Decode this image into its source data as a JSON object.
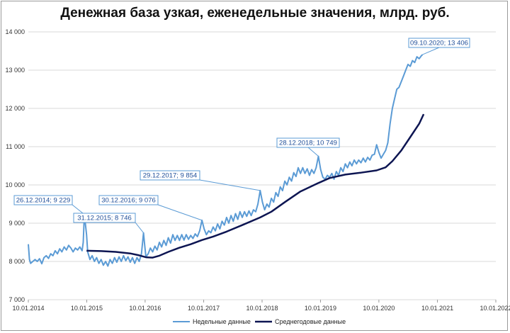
{
  "chart_data": {
    "type": "line",
    "title": "Денежная база узкая, еженедельные значения, млрд. руб.",
    "ylim": [
      7000,
      14000
    ],
    "yticks": [
      7000,
      8000,
      9000,
      10000,
      11000,
      12000,
      13000,
      14000
    ],
    "ytick_labels": [
      "7 000",
      "8 000",
      "9 000",
      "10 000",
      "11 000",
      "12 000",
      "13 000",
      "14 000"
    ],
    "xlim": [
      "2014-01-10",
      "2022-01-10"
    ],
    "xticks": [
      "2014-01-10",
      "2015-01-10",
      "2016-01-10",
      "2017-01-10",
      "2018-01-10",
      "2019-01-10",
      "2020-01-10",
      "2021-01-10",
      "2022-01-10"
    ],
    "xtick_labels": [
      "10.01.2014",
      "10.01.2015",
      "10.01.2016",
      "10.01.2017",
      "10.01.2018",
      "10.01.2019",
      "10.01.2020",
      "10.01.2021",
      "10.01.2022"
    ],
    "grid": true,
    "legend_position": "bottom",
    "series": [
      {
        "name": "Недельные данные",
        "color": "#5b9bd5",
        "points": [
          [
            "2014-01-10",
            8450
          ],
          [
            "2014-01-17",
            8050
          ],
          [
            "2014-01-24",
            7950
          ],
          [
            "2014-02-07",
            8000
          ],
          [
            "2014-02-21",
            8050
          ],
          [
            "2014-03-07",
            8000
          ],
          [
            "2014-03-21",
            8070
          ],
          [
            "2014-04-04",
            7940
          ],
          [
            "2014-04-18",
            8100
          ],
          [
            "2014-05-02",
            8150
          ],
          [
            "2014-05-16",
            8080
          ],
          [
            "2014-05-30",
            8200
          ],
          [
            "2014-06-13",
            8150
          ],
          [
            "2014-06-27",
            8280
          ],
          [
            "2014-07-11",
            8200
          ],
          [
            "2014-07-25",
            8330
          ],
          [
            "2014-08-08",
            8250
          ],
          [
            "2014-08-22",
            8380
          ],
          [
            "2014-09-05",
            8300
          ],
          [
            "2014-09-19",
            8420
          ],
          [
            "2014-10-03",
            8350
          ],
          [
            "2014-10-17",
            8250
          ],
          [
            "2014-10-31",
            8350
          ],
          [
            "2014-11-14",
            8300
          ],
          [
            "2014-11-28",
            8380
          ],
          [
            "2014-12-12",
            8280
          ],
          [
            "2014-12-19",
            8500
          ],
          [
            "2014-12-26",
            9229
          ],
          [
            "2015-01-09",
            8700
          ],
          [
            "2015-01-16",
            8250
          ],
          [
            "2015-01-30",
            8050
          ],
          [
            "2015-02-13",
            8150
          ],
          [
            "2015-02-27",
            8000
          ],
          [
            "2015-03-13",
            8100
          ],
          [
            "2015-03-27",
            7950
          ],
          [
            "2015-04-10",
            8050
          ],
          [
            "2015-04-24",
            7900
          ],
          [
            "2015-05-08",
            8000
          ],
          [
            "2015-05-22",
            7880
          ],
          [
            "2015-06-05",
            8050
          ],
          [
            "2015-06-19",
            7950
          ],
          [
            "2015-07-03",
            8100
          ],
          [
            "2015-07-17",
            7980
          ],
          [
            "2015-07-31",
            8120
          ],
          [
            "2015-08-14",
            8000
          ],
          [
            "2015-08-28",
            8150
          ],
          [
            "2015-09-11",
            8020
          ],
          [
            "2015-09-25",
            8120
          ],
          [
            "2015-10-09",
            7980
          ],
          [
            "2015-10-23",
            8100
          ],
          [
            "2015-11-06",
            7950
          ],
          [
            "2015-11-20",
            8100
          ],
          [
            "2015-12-04",
            8000
          ],
          [
            "2015-12-18",
            8200
          ],
          [
            "2015-12-31",
            8746
          ],
          [
            "2016-01-08",
            8400
          ],
          [
            "2016-01-15",
            8120
          ],
          [
            "2016-01-29",
            8200
          ],
          [
            "2016-02-12",
            8350
          ],
          [
            "2016-02-26",
            8250
          ],
          [
            "2016-03-11",
            8400
          ],
          [
            "2016-03-25",
            8300
          ],
          [
            "2016-04-08",
            8500
          ],
          [
            "2016-04-22",
            8380
          ],
          [
            "2016-05-06",
            8550
          ],
          [
            "2016-05-20",
            8420
          ],
          [
            "2016-06-03",
            8620
          ],
          [
            "2016-06-17",
            8480
          ],
          [
            "2016-07-01",
            8700
          ],
          [
            "2016-07-15",
            8550
          ],
          [
            "2016-07-29",
            8680
          ],
          [
            "2016-08-12",
            8550
          ],
          [
            "2016-08-26",
            8700
          ],
          [
            "2016-09-09",
            8560
          ],
          [
            "2016-09-23",
            8700
          ],
          [
            "2016-10-07",
            8580
          ],
          [
            "2016-10-21",
            8680
          ],
          [
            "2016-11-04",
            8600
          ],
          [
            "2016-11-18",
            8720
          ],
          [
            "2016-12-02",
            8650
          ],
          [
            "2016-12-16",
            8800
          ],
          [
            "2016-12-30",
            9076
          ],
          [
            "2017-01-13",
            8850
          ],
          [
            "2017-01-27",
            8700
          ],
          [
            "2017-02-10",
            8800
          ],
          [
            "2017-02-24",
            8750
          ],
          [
            "2017-03-10",
            8900
          ],
          [
            "2017-03-24",
            8800
          ],
          [
            "2017-04-07",
            8980
          ],
          [
            "2017-04-21",
            8850
          ],
          [
            "2017-05-05",
            9050
          ],
          [
            "2017-05-19",
            8950
          ],
          [
            "2017-06-02",
            9150
          ],
          [
            "2017-06-16",
            9000
          ],
          [
            "2017-06-30",
            9200
          ],
          [
            "2017-07-14",
            9050
          ],
          [
            "2017-07-28",
            9250
          ],
          [
            "2017-08-11",
            9100
          ],
          [
            "2017-08-25",
            9300
          ],
          [
            "2017-09-08",
            9150
          ],
          [
            "2017-09-22",
            9300
          ],
          [
            "2017-10-06",
            9180
          ],
          [
            "2017-10-20",
            9320
          ],
          [
            "2017-11-03",
            9200
          ],
          [
            "2017-11-17",
            9350
          ],
          [
            "2017-12-01",
            9300
          ],
          [
            "2017-12-15",
            9500
          ],
          [
            "2017-12-29",
            9854
          ],
          [
            "2018-01-12",
            9550
          ],
          [
            "2018-01-26",
            9350
          ],
          [
            "2018-02-09",
            9500
          ],
          [
            "2018-02-23",
            9420
          ],
          [
            "2018-03-09",
            9650
          ],
          [
            "2018-03-23",
            9550
          ],
          [
            "2018-04-06",
            9800
          ],
          [
            "2018-04-20",
            9700
          ],
          [
            "2018-05-04",
            9950
          ],
          [
            "2018-05-18",
            9850
          ],
          [
            "2018-06-01",
            10100
          ],
          [
            "2018-06-15",
            10000
          ],
          [
            "2018-06-29",
            10200
          ],
          [
            "2018-07-13",
            10100
          ],
          [
            "2018-07-27",
            10320
          ],
          [
            "2018-08-10",
            10220
          ],
          [
            "2018-08-24",
            10450
          ],
          [
            "2018-09-07",
            10300
          ],
          [
            "2018-09-21",
            10450
          ],
          [
            "2018-10-05",
            10300
          ],
          [
            "2018-10-19",
            10420
          ],
          [
            "2018-11-02",
            10250
          ],
          [
            "2018-11-16",
            10400
          ],
          [
            "2018-11-30",
            10300
          ],
          [
            "2018-12-14",
            10450
          ],
          [
            "2018-12-28",
            10749
          ],
          [
            "2019-01-11",
            10400
          ],
          [
            "2019-01-25",
            10200
          ],
          [
            "2019-02-08",
            10150
          ],
          [
            "2019-02-22",
            10250
          ],
          [
            "2019-03-08",
            10200
          ],
          [
            "2019-03-22",
            10300
          ],
          [
            "2019-04-05",
            10150
          ],
          [
            "2019-04-19",
            10350
          ],
          [
            "2019-05-03",
            10250
          ],
          [
            "2019-05-17",
            10450
          ],
          [
            "2019-05-31",
            10350
          ],
          [
            "2019-06-14",
            10550
          ],
          [
            "2019-06-28",
            10450
          ],
          [
            "2019-07-12",
            10600
          ],
          [
            "2019-07-26",
            10500
          ],
          [
            "2019-08-09",
            10650
          ],
          [
            "2019-08-23",
            10550
          ],
          [
            "2019-09-06",
            10650
          ],
          [
            "2019-09-20",
            10580
          ],
          [
            "2019-10-04",
            10700
          ],
          [
            "2019-10-18",
            10600
          ],
          [
            "2019-11-01",
            10720
          ],
          [
            "2019-11-15",
            10650
          ],
          [
            "2019-11-29",
            10780
          ],
          [
            "2019-12-13",
            10800
          ],
          [
            "2019-12-27",
            11050
          ],
          [
            "2020-01-10",
            10850
          ],
          [
            "2020-01-24",
            10700
          ],
          [
            "2020-02-07",
            10800
          ],
          [
            "2020-02-21",
            10900
          ],
          [
            "2020-03-06",
            11100
          ],
          [
            "2020-03-20",
            11600
          ],
          [
            "2020-04-03",
            12000
          ],
          [
            "2020-04-17",
            12250
          ],
          [
            "2020-05-01",
            12500
          ],
          [
            "2020-05-15",
            12550
          ],
          [
            "2020-05-29",
            12700
          ],
          [
            "2020-06-12",
            12850
          ],
          [
            "2020-06-26",
            13000
          ],
          [
            "2020-07-10",
            13150
          ],
          [
            "2020-07-24",
            13100
          ],
          [
            "2020-08-07",
            13250
          ],
          [
            "2020-08-21",
            13200
          ],
          [
            "2020-09-04",
            13350
          ],
          [
            "2020-09-18",
            13300
          ],
          [
            "2020-10-02",
            13380
          ],
          [
            "2020-10-09",
            13406
          ]
        ]
      },
      {
        "name": "Среднегодовые данные",
        "color": "#0d1552",
        "points": [
          [
            "2015-01-09",
            8280
          ],
          [
            "2015-04-10",
            8270
          ],
          [
            "2015-07-10",
            8250
          ],
          [
            "2015-10-09",
            8210
          ],
          [
            "2015-12-04",
            8160
          ],
          [
            "2016-01-15",
            8110
          ],
          [
            "2016-02-26",
            8100
          ],
          [
            "2016-04-08",
            8150
          ],
          [
            "2016-06-03",
            8250
          ],
          [
            "2016-08-12",
            8360
          ],
          [
            "2016-10-21",
            8450
          ],
          [
            "2016-12-30",
            8560
          ],
          [
            "2017-03-10",
            8650
          ],
          [
            "2017-06-02",
            8780
          ],
          [
            "2017-09-08",
            8950
          ],
          [
            "2017-12-29",
            9150
          ],
          [
            "2018-03-09",
            9300
          ],
          [
            "2018-06-01",
            9550
          ],
          [
            "2018-09-07",
            9830
          ],
          [
            "2018-12-28",
            10050
          ],
          [
            "2019-03-08",
            10180
          ],
          [
            "2019-06-14",
            10270
          ],
          [
            "2019-09-20",
            10320
          ],
          [
            "2019-12-27",
            10380
          ],
          [
            "2020-02-21",
            10460
          ],
          [
            "2020-04-03",
            10620
          ],
          [
            "2020-05-29",
            10900
          ],
          [
            "2020-07-24",
            11250
          ],
          [
            "2020-09-18",
            11600
          ],
          [
            "2020-10-16",
            11850
          ]
        ]
      }
    ],
    "annotations": [
      {
        "text": "26.12.2014; 9 229",
        "x": "2014-12-26",
        "y": 9229
      },
      {
        "text": "31.12.2015; 8 746",
        "x": "2015-12-31",
        "y": 8746
      },
      {
        "text": "30.12.2016; 9 076",
        "x": "2016-12-30",
        "y": 9076
      },
      {
        "text": "29.12.2017; 9 854",
        "x": "2017-12-29",
        "y": 9854
      },
      {
        "text": "28.12.2018; 10 749",
        "x": "2018-12-28",
        "y": 10749
      },
      {
        "text": "09.10.2020; 13 406",
        "x": "2020-10-09",
        "y": 13406
      }
    ]
  }
}
